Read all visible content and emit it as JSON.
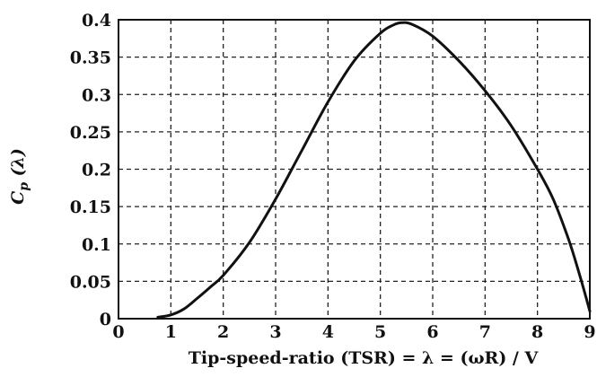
{
  "chart_data": {
    "type": "line",
    "title": "",
    "xlabel": "Tip-speed-ratio  (TSR) = λ = (ωR) / V",
    "ylabel_main": "C",
    "ylabel_sub": "p",
    "ylabel_arg": " (λ)",
    "xlim": [
      0,
      9
    ],
    "ylim": [
      0,
      0.4
    ],
    "x_ticks": [
      0,
      1,
      2,
      3,
      4,
      5,
      6,
      7,
      8,
      9
    ],
    "x_tick_labels": [
      "0",
      "1",
      "2",
      "3",
      "4",
      "5",
      "6",
      "7",
      "8",
      "9"
    ],
    "y_ticks": [
      0,
      0.05,
      0.1,
      0.15,
      0.2,
      0.25,
      0.3,
      0.35,
      0.4
    ],
    "y_tick_labels": [
      "0",
      "0.05",
      "0.1",
      "0.15",
      "0.2",
      "0.25",
      "0.3",
      "0.35",
      "0.4"
    ],
    "grid": true,
    "grid_style": "dashed",
    "series": [
      {
        "color": "#111111",
        "x": [
          0.75,
          1.0,
          1.25,
          1.5,
          1.75,
          2.0,
          2.5,
          3.0,
          3.5,
          4.0,
          4.5,
          5.0,
          5.25,
          5.4,
          5.6,
          6.0,
          6.5,
          7.0,
          7.5,
          8.0,
          8.3,
          8.6,
          8.8,
          9.0
        ],
        "y": [
          0.002,
          0.005,
          0.013,
          0.027,
          0.042,
          0.058,
          0.102,
          0.16,
          0.225,
          0.29,
          0.345,
          0.382,
          0.393,
          0.396,
          0.394,
          0.378,
          0.345,
          0.305,
          0.258,
          0.2,
          0.16,
          0.105,
          0.06,
          0.01
        ]
      }
    ]
  }
}
